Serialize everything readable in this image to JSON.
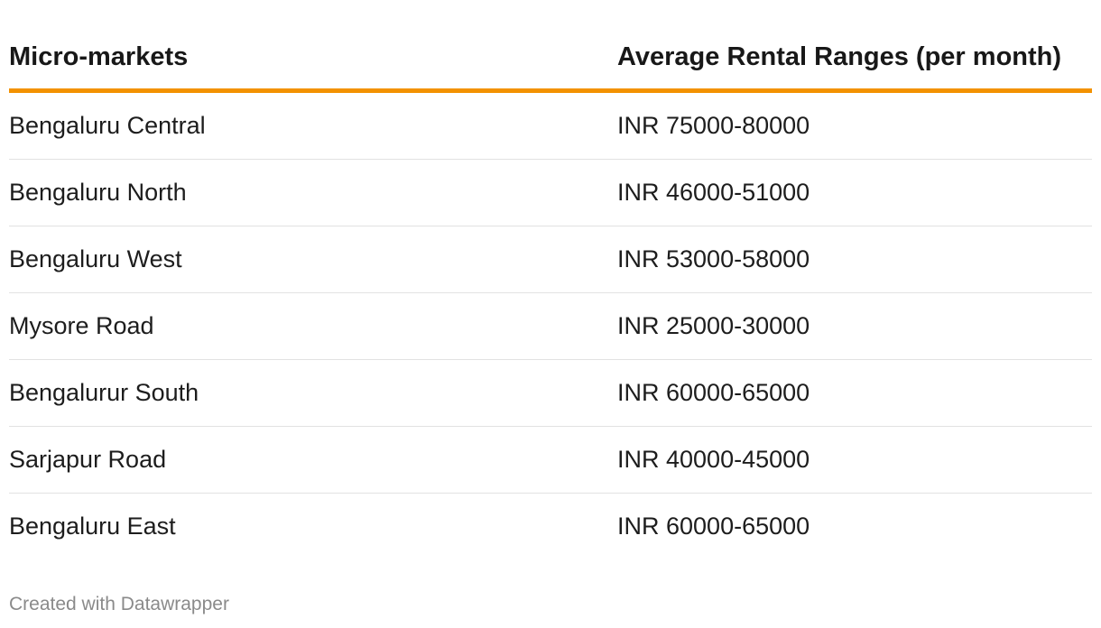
{
  "table": {
    "headers": [
      "Micro-markets",
      "Average Rental Ranges (per month)"
    ],
    "rows": [
      [
        "Bengaluru Central",
        "INR 75000-80000"
      ],
      [
        "Bengaluru North",
        "INR 46000-51000"
      ],
      [
        "Bengaluru West",
        "INR 53000-58000"
      ],
      [
        "Mysore Road",
        "INR 25000-30000"
      ],
      [
        "Bengalurur South",
        "INR 60000-65000"
      ],
      [
        "Sarjapur Road",
        "INR 40000-45000"
      ],
      [
        "Bengaluru East",
        "INR 60000-65000"
      ]
    ]
  },
  "footer": {
    "credit": "Created with Datawrapper"
  },
  "colors": {
    "header_rule": "#f39200",
    "row_divider": "#e2e2e2",
    "credit_text": "#8a8a8a"
  }
}
